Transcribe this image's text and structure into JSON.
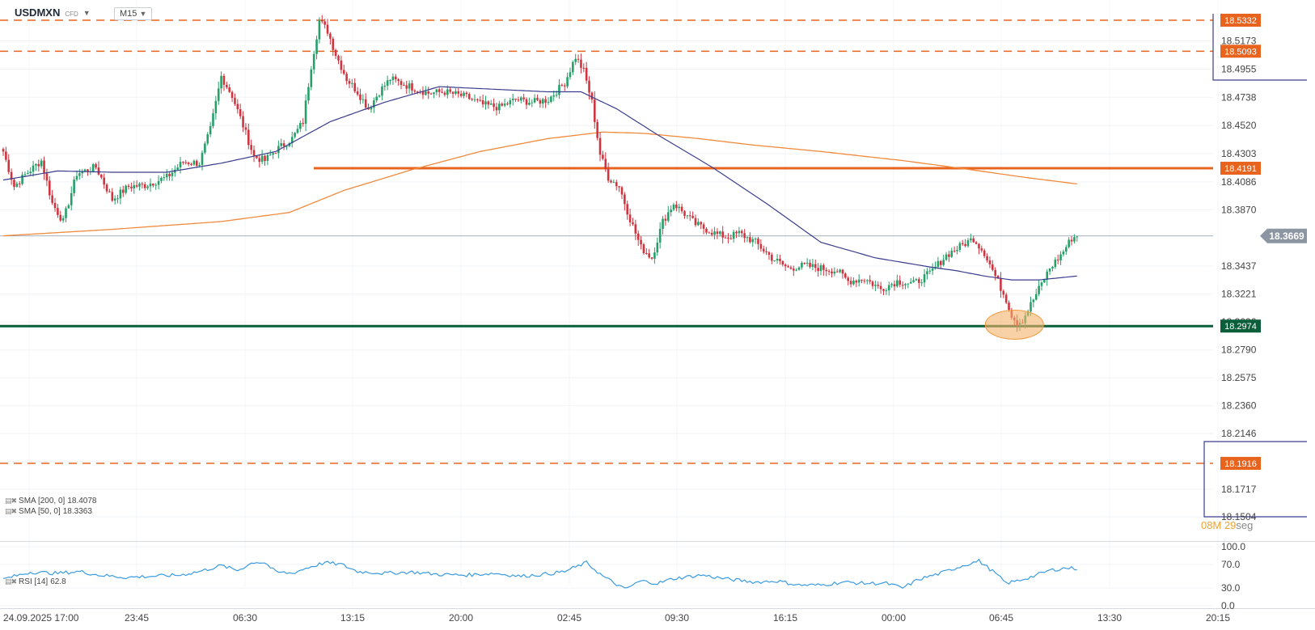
{
  "header": {
    "symbol": "USDMXN",
    "instrument_type": "CFD",
    "timeframe": "M15"
  },
  "legend": {
    "sma200": {
      "label": "SMA [200, 0]",
      "value": "18.4078"
    },
    "sma50": {
      "label": "SMA [50, 0]",
      "value": "18.3363"
    },
    "rsi": {
      "label": "RSI [14]",
      "value": "62.8"
    }
  },
  "timer": {
    "minutes": "08",
    "m_unit": "M",
    "seconds": "29",
    "s_unit": "seg"
  },
  "colors": {
    "bull": "#26a069",
    "bear": "#d0343f",
    "sma50": "#3a3e8c",
    "sma200": "#f08a3c",
    "resistance": "#e8641e",
    "support": "#0b5e3a",
    "rsi": "#3a9be0",
    "last_price": "#8a95a3",
    "highlight": "#f5b26b"
  },
  "chart_data": {
    "type": "candlestick",
    "instrument": "USDMXN",
    "timeframe": "M15",
    "y_axis_ticks": [
      "18.5173",
      "18.4955",
      "18.4738",
      "18.4520",
      "18.4303",
      "18.4086",
      "18.3870",
      "18.3437",
      "18.3221",
      "18.3006",
      "18.2790",
      "18.2575",
      "18.2360",
      "18.2146",
      "18.1932",
      "18.1717",
      "18.1504"
    ],
    "x_axis_ticks": [
      "24.09.2025 17:00",
      "23:45",
      "06:30",
      "13:15",
      "20:00",
      "02:45",
      "09:30",
      "16:15",
      "00:00",
      "06:45",
      "13:30",
      "20:15"
    ],
    "last_price": "18.3669",
    "levels": [
      {
        "price": "18.5332",
        "style": "dashed",
        "color": "#e8641e"
      },
      {
        "price": "18.5093",
        "style": "dashed",
        "color": "#e8641e"
      },
      {
        "price": "18.4191",
        "style": "solid",
        "color": "#e8641e"
      },
      {
        "price": "18.2974",
        "style": "solid",
        "color": "#0b5e3a"
      },
      {
        "price": "18.1916",
        "style": "dashed",
        "color": "#e8641e"
      }
    ],
    "anchors": [
      [
        0,
        18.432
      ],
      [
        4,
        18.405
      ],
      [
        8,
        18.414
      ],
      [
        14,
        18.425
      ],
      [
        18,
        18.392
      ],
      [
        22,
        18.378
      ],
      [
        27,
        18.415
      ],
      [
        34,
        18.42
      ],
      [
        40,
        18.395
      ],
      [
        46,
        18.405
      ],
      [
        52,
        18.406
      ],
      [
        60,
        18.412
      ],
      [
        66,
        18.424
      ],
      [
        72,
        18.423
      ],
      [
        76,
        18.449
      ],
      [
        80,
        18.49
      ],
      [
        84,
        18.475
      ],
      [
        88,
        18.452
      ],
      [
        92,
        18.428
      ],
      [
        96,
        18.425
      ],
      [
        100,
        18.433
      ],
      [
        106,
        18.442
      ],
      [
        110,
        18.455
      ],
      [
        113,
        18.498
      ],
      [
        116,
        18.533
      ],
      [
        119,
        18.525
      ],
      [
        122,
        18.507
      ],
      [
        126,
        18.488
      ],
      [
        130,
        18.478
      ],
      [
        134,
        18.465
      ],
      [
        138,
        18.478
      ],
      [
        142,
        18.488
      ],
      [
        148,
        18.483
      ],
      [
        156,
        18.477
      ],
      [
        162,
        18.478
      ],
      [
        170,
        18.474
      ],
      [
        176,
        18.468
      ],
      [
        182,
        18.466
      ],
      [
        188,
        18.472
      ],
      [
        194,
        18.47
      ],
      [
        200,
        18.472
      ],
      [
        206,
        18.485
      ],
      [
        210,
        18.505
      ],
      [
        213,
        18.494
      ],
      [
        216,
        18.47
      ],
      [
        219,
        18.43
      ],
      [
        222,
        18.412
      ],
      [
        226,
        18.405
      ],
      [
        230,
        18.38
      ],
      [
        234,
        18.358
      ],
      [
        238,
        18.35
      ],
      [
        242,
        18.378
      ],
      [
        246,
        18.392
      ],
      [
        250,
        18.384
      ],
      [
        254,
        18.376
      ],
      [
        258,
        18.372
      ],
      [
        262,
        18.368
      ],
      [
        266,
        18.366
      ],
      [
        270,
        18.369
      ],
      [
        276,
        18.362
      ],
      [
        282,
        18.35
      ],
      [
        288,
        18.342
      ],
      [
        294,
        18.344
      ],
      [
        300,
        18.342
      ],
      [
        306,
        18.34
      ],
      [
        310,
        18.332
      ],
      [
        316,
        18.334
      ],
      [
        322,
        18.326
      ],
      [
        328,
        18.332
      ],
      [
        334,
        18.33
      ],
      [
        340,
        18.338
      ],
      [
        346,
        18.352
      ],
      [
        352,
        18.36
      ],
      [
        356,
        18.365
      ],
      [
        360,
        18.354
      ],
      [
        364,
        18.336
      ],
      [
        368,
        18.318
      ],
      [
        370,
        18.306
      ],
      [
        372,
        18.3
      ],
      [
        374,
        18.302
      ],
      [
        376,
        18.31
      ],
      [
        380,
        18.326
      ],
      [
        384,
        18.342
      ],
      [
        388,
        18.352
      ],
      [
        392,
        18.365
      ],
      [
        394,
        18.367
      ]
    ],
    "sma50_points": [
      [
        0,
        18.41
      ],
      [
        20,
        18.417
      ],
      [
        40,
        18.416
      ],
      [
        60,
        18.416
      ],
      [
        80,
        18.423
      ],
      [
        100,
        18.432
      ],
      [
        120,
        18.455
      ],
      [
        140,
        18.47
      ],
      [
        160,
        18.482
      ],
      [
        180,
        18.48
      ],
      [
        200,
        18.478
      ],
      [
        212,
        18.478
      ],
      [
        225,
        18.465
      ],
      [
        240,
        18.445
      ],
      [
        260,
        18.42
      ],
      [
        280,
        18.392
      ],
      [
        300,
        18.362
      ],
      [
        320,
        18.35
      ],
      [
        340,
        18.343
      ],
      [
        350,
        18.34
      ],
      [
        360,
        18.336
      ],
      [
        370,
        18.333
      ],
      [
        380,
        18.333
      ],
      [
        394,
        18.336
      ]
    ],
    "sma200_points": [
      [
        0,
        18.367
      ],
      [
        40,
        18.372
      ],
      [
        80,
        18.378
      ],
      [
        105,
        18.385
      ],
      [
        125,
        18.402
      ],
      [
        150,
        18.418
      ],
      [
        175,
        18.432
      ],
      [
        200,
        18.442
      ],
      [
        220,
        18.447
      ],
      [
        235,
        18.446
      ],
      [
        255,
        18.442
      ],
      [
        275,
        18.437
      ],
      [
        300,
        18.432
      ],
      [
        330,
        18.425
      ],
      [
        355,
        18.418
      ],
      [
        375,
        18.412
      ],
      [
        394,
        18.407
      ]
    ],
    "rsi_panel": {
      "y_axis_ticks": [
        "100.0",
        "70.0",
        "30.0",
        "0.0"
      ],
      "last_value": 62.8,
      "points": [
        [
          0,
          45
        ],
        [
          10,
          57
        ],
        [
          20,
          55
        ],
        [
          28,
          58
        ],
        [
          35,
          52
        ],
        [
          45,
          48
        ],
        [
          55,
          50
        ],
        [
          65,
          52
        ],
        [
          72,
          58
        ],
        [
          80,
          68
        ],
        [
          86,
          60
        ],
        [
          92,
          74
        ],
        [
          96,
          73
        ],
        [
          100,
          57
        ],
        [
          106,
          55
        ],
        [
          112,
          65
        ],
        [
          118,
          73
        ],
        [
          124,
          70
        ],
        [
          130,
          58
        ],
        [
          140,
          55
        ],
        [
          150,
          57
        ],
        [
          160,
          53
        ],
        [
          170,
          52
        ],
        [
          180,
          55
        ],
        [
          190,
          50
        ],
        [
          200,
          54
        ],
        [
          206,
          58
        ],
        [
          214,
          73
        ],
        [
          220,
          50
        ],
        [
          228,
          28
        ],
        [
          234,
          42
        ],
        [
          240,
          38
        ],
        [
          246,
          46
        ],
        [
          256,
          52
        ],
        [
          266,
          45
        ],
        [
          276,
          40
        ],
        [
          284,
          42
        ],
        [
          292,
          35
        ],
        [
          300,
          35
        ],
        [
          308,
          40
        ],
        [
          316,
          38
        ],
        [
          324,
          38
        ],
        [
          330,
          30
        ],
        [
          336,
          45
        ],
        [
          344,
          55
        ],
        [
          352,
          68
        ],
        [
          358,
          76
        ],
        [
          364,
          55
        ],
        [
          368,
          38
        ],
        [
          372,
          42
        ],
        [
          378,
          50
        ],
        [
          384,
          60
        ],
        [
          390,
          64
        ],
        [
          394,
          63
        ]
      ]
    }
  }
}
